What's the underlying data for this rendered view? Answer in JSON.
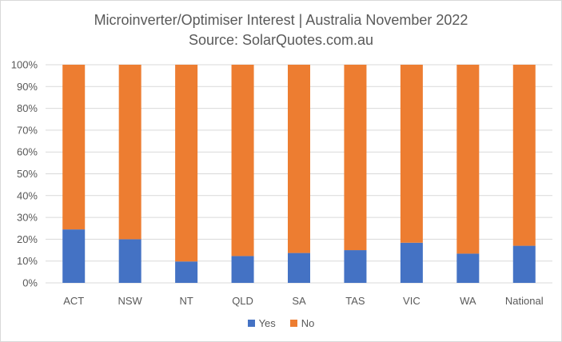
{
  "chart_data": {
    "type": "bar",
    "stacked": true,
    "title": "Microinverter/Optimiser  Interest | Australia November 2022",
    "subtitle": "Source: SolarQuotes.com.au",
    "categories": [
      "ACT",
      "NSW",
      "NT",
      "QLD",
      "SA",
      "TAS",
      "VIC",
      "WA",
      "National"
    ],
    "series": [
      {
        "name": "Yes",
        "color": "#4472c4",
        "values": [
          24.5,
          20,
          9.8,
          12.3,
          13.7,
          15,
          18.4,
          13.4,
          17
        ]
      },
      {
        "name": "No",
        "color": "#ed7d31",
        "values": [
          75.5,
          80,
          90.2,
          87.7,
          86.3,
          85,
          81.6,
          86.6,
          83
        ]
      }
    ],
    "yticks": [
      "0%",
      "10%",
      "20%",
      "30%",
      "40%",
      "50%",
      "60%",
      "70%",
      "80%",
      "90%",
      "100%"
    ],
    "ylim": [
      0,
      100
    ],
    "grid": true,
    "legend_position": "bottom"
  }
}
